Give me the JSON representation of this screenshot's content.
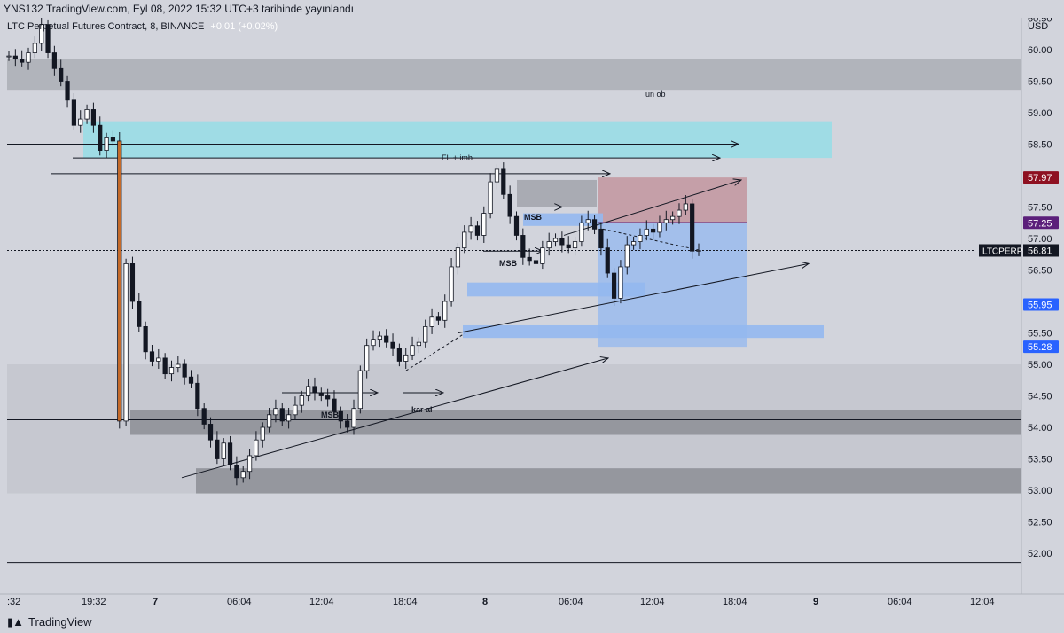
{
  "header": {
    "published": "YNS132 TradingView.com, Eyl 08, 2022 15:32 UTC+3 tarihinde yayınlandı"
  },
  "legend": {
    "symbol": "LTC Perpetual Futures Contract, 8, BINANCE",
    "change": "+0.01 (+0.02%)"
  },
  "footer": {
    "brand": "TradingView"
  },
  "colors": {
    "background": "#d2d4dc",
    "candle": "#131722",
    "fill_zone": "#9fdce5",
    "blue_zone": "#93b8f0",
    "red_zone": "#c49ca4",
    "gray_zone": "#a9abb3",
    "dark_zone": "#8f9198",
    "badge_red": "#8e1021",
    "badge_purple": "#5b1f7a",
    "badge_blue": "#2962ff"
  },
  "chart_data": {
    "type": "line",
    "chart_style": "candlestick",
    "symbol": "LTC Perpetual Futures Contract, 8, BINANCE",
    "price_unit": "USD",
    "y_axis_label": "USD",
    "ylim": [
      51.75,
      60.6
    ],
    "y_ticks": [
      "60.50",
      "60.00",
      "59.50",
      "59.00",
      "58.50",
      "58.00",
      "57.50",
      "57.00",
      "56.50",
      "56.00",
      "55.50",
      "55.00",
      "54.50",
      "54.00",
      "53.50",
      "53.00",
      "52.50",
      "52.00"
    ],
    "x_ticks": [
      ":32",
      "19:32",
      "7",
      "06:04",
      "12:04",
      "18:04",
      "8",
      "06:04",
      "12:04",
      "18:04",
      "9",
      "06:04",
      "12:04"
    ],
    "last_price": {
      "label": "LTCPERP",
      "value": "56.81"
    },
    "price_badges": [
      {
        "value": "57.97",
        "color": "#8e1021"
      },
      {
        "value": "57.25",
        "color": "#5b1f7a"
      },
      {
        "value": "55.95",
        "color": "#2962ff"
      },
      {
        "value": "55.28",
        "color": "#2962ff"
      }
    ],
    "annotations": [
      "un ob",
      "FL + imb",
      "MSB",
      "MSB",
      "MSB",
      "kar al"
    ],
    "series": [
      {
        "values": [
          59.9,
          59.85,
          59.8,
          59.95,
          60.1,
          60.4,
          59.95,
          59.7,
          59.5,
          59.2,
          58.8,
          58.9,
          59.05,
          58.8,
          58.4,
          58.6,
          58.55,
          54.1,
          56.6,
          56.0,
          55.6,
          55.2,
          55.05,
          55.1,
          54.85,
          54.95,
          55.0,
          54.8,
          54.7,
          54.3,
          54.05,
          53.8,
          53.5,
          53.75,
          53.4,
          53.2,
          53.3,
          53.55,
          53.8,
          54.0,
          54.2,
          54.3,
          54.1,
          54.2,
          54.35,
          54.5,
          54.65,
          54.55,
          54.5,
          54.45,
          54.25,
          54.1,
          54.0,
          54.3,
          54.9,
          55.3,
          55.4,
          55.45,
          55.35,
          55.25,
          55.05,
          55.15,
          55.3,
          55.35,
          55.6,
          55.75,
          55.7,
          56.0,
          56.55,
          56.85,
          57.1,
          57.2,
          57.05,
          57.4,
          57.9,
          58.1,
          57.7,
          57.35,
          57.05,
          56.7,
          56.65,
          56.6,
          56.85,
          56.95,
          57.0,
          56.9,
          56.85,
          56.95,
          57.25,
          57.3,
          57.15,
          56.85,
          56.45,
          56.05,
          56.55,
          56.9,
          56.95,
          57.05,
          57.15,
          57.1,
          57.25,
          57.3,
          57.35,
          57.45,
          57.55,
          56.8,
          56.81
        ]
      }
    ]
  }
}
